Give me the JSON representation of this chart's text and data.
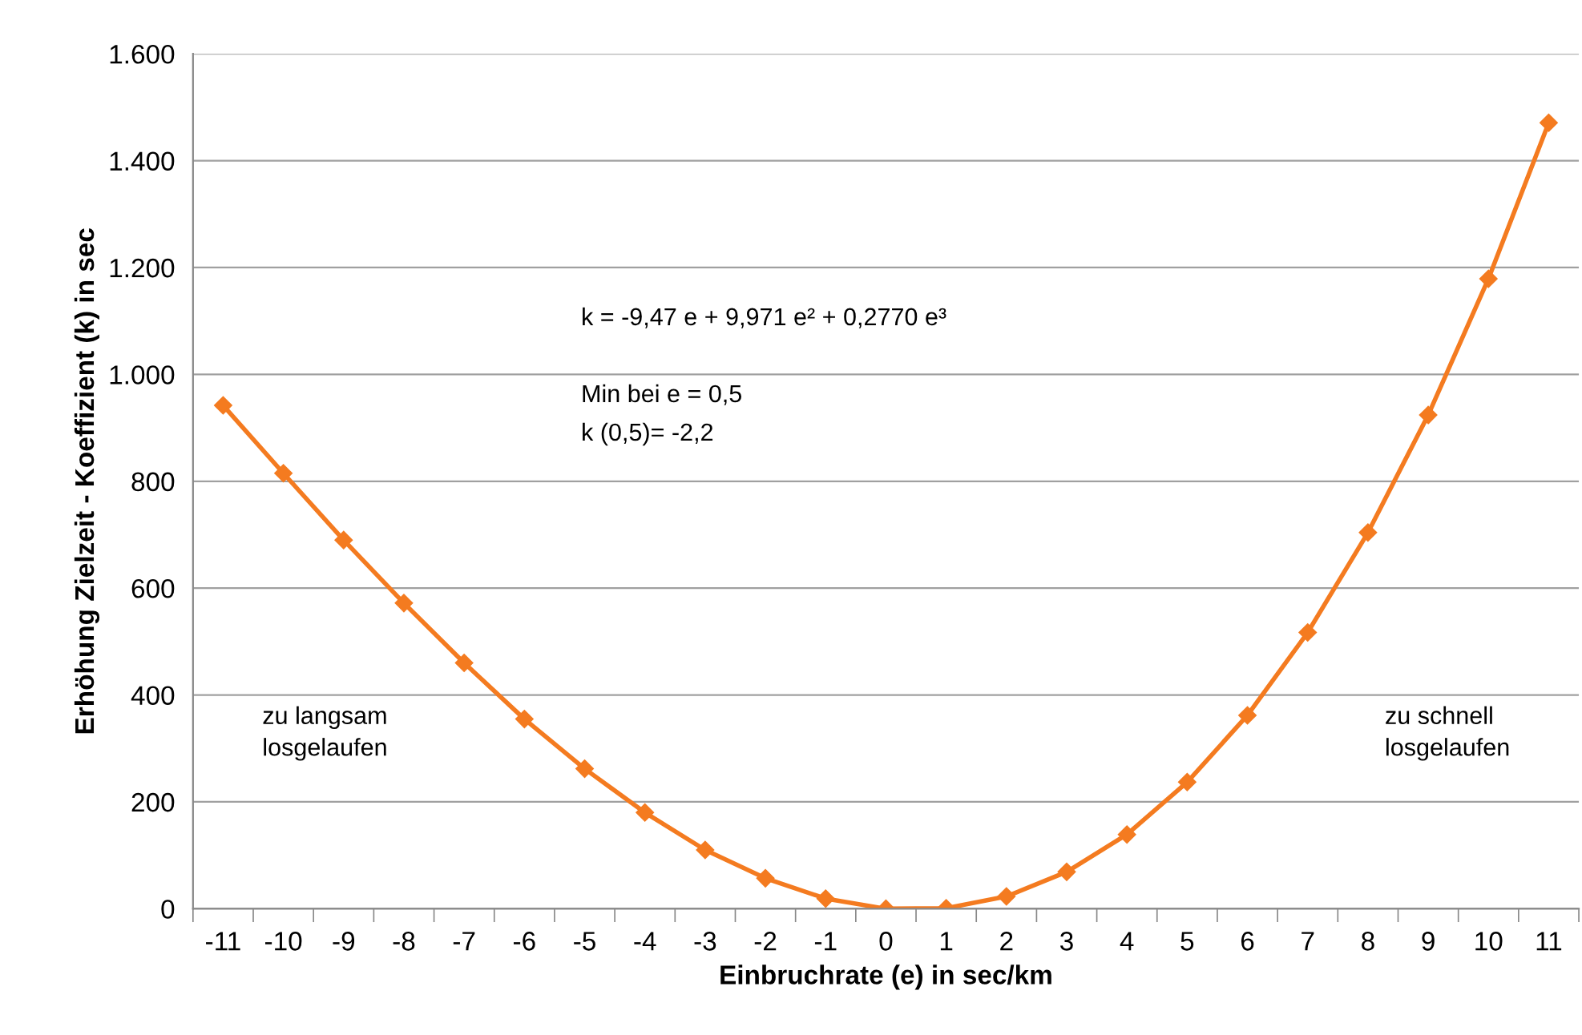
{
  "chart_data": {
    "type": "line",
    "xlabel": "Einbruchrate (e) in sec/km",
    "ylabel": "Erhöhung Zielzeit - Koeffizient (k) in sec",
    "categories": [
      "-11",
      "-10",
      "-9",
      "-8",
      "-7",
      "-6",
      "-5",
      "-4",
      "-3",
      "-2",
      "-1",
      "0",
      "1",
      "2",
      "3",
      "4",
      "5",
      "6",
      "7",
      "8",
      "9",
      "10",
      "11"
    ],
    "series": [
      {
        "color": "#f47b20",
        "values": [
          942,
          815,
          690,
          572,
          460,
          355,
          262,
          180,
          110,
          57,
          19,
          0,
          1,
          23,
          69,
          139,
          237,
          362,
          517,
          704,
          924,
          1179,
          1471
        ]
      }
    ],
    "ylim": [
      0,
      1600
    ],
    "yticks": [
      0,
      200,
      400,
      600,
      800,
      {
        "value": 1000,
        "label": "1.000"
      },
      {
        "value": 1200,
        "label": "1.200"
      },
      {
        "value": 1400,
        "label": "1.400"
      },
      {
        "value": 1600,
        "label": "1.600"
      }
    ],
    "grid": "y",
    "marker": "diamond",
    "line_style": "solid",
    "legend": false,
    "annotations": [
      "k = -9,47 e + 9,971 e² + 0,2770 e³",
      "Min bei e = 0,5",
      "k (0,5)= -2,2",
      "zu langsam\nlosgelaufen",
      "zu schnell\nlosgelaufen"
    ]
  }
}
